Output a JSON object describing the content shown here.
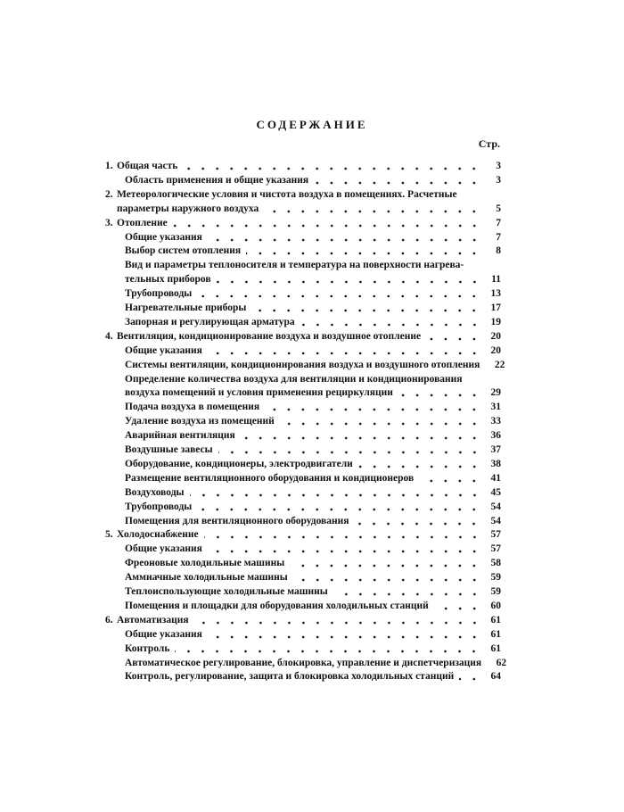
{
  "header": {
    "title": "СОДЕРЖАНИЕ",
    "page_label": "Стр."
  },
  "sections": [
    {
      "number": "1.",
      "lines": [
        "Общая часть"
      ],
      "page": 3,
      "items": [
        {
          "lines": [
            "Область применения и общие указания"
          ],
          "page": 3
        }
      ]
    },
    {
      "number": "2.",
      "lines": [
        "Метеорологические условия и чистота воздуха в помещениях. Расчетные",
        "параметры наружного воздуха"
      ],
      "page": 5,
      "items": []
    },
    {
      "number": "3.",
      "lines": [
        "Отопление"
      ],
      "page": 7,
      "items": [
        {
          "lines": [
            "Общие указания"
          ],
          "page": 7
        },
        {
          "lines": [
            "Выбор систем отопления"
          ],
          "page": 8
        },
        {
          "lines": [
            "Вид и параметры теплоносителя и температура на поверхности нагрева-",
            "тельных приборов"
          ],
          "page": 11
        },
        {
          "lines": [
            "Трубопроводы"
          ],
          "page": 13
        },
        {
          "lines": [
            "Нагревательные приборы"
          ],
          "page": 17
        },
        {
          "lines": [
            "Запорная и регулирующая арматура"
          ],
          "page": 19
        }
      ]
    },
    {
      "number": "4.",
      "lines": [
        "Вентиляция, кондиционирование воздуха и воздушное отопление"
      ],
      "page": 20,
      "items": [
        {
          "lines": [
            "Общие указания"
          ],
          "page": 20
        },
        {
          "lines": [
            "Системы вентиляции, кондиционирования воздуха и воздушного отопления"
          ],
          "page": 22
        },
        {
          "lines": [
            "Определение количества воздуха для вентиляции и кондиционирования",
            "воздуха помещений и условия применения рециркуляции"
          ],
          "page": 29
        },
        {
          "lines": [
            "Подача воздуха в помещения"
          ],
          "page": 31
        },
        {
          "lines": [
            "Удаление воздуха из помещений"
          ],
          "page": 33
        },
        {
          "lines": [
            "Аварийная вентиляция"
          ],
          "page": 36
        },
        {
          "lines": [
            "Воздушные завесы"
          ],
          "page": 37
        },
        {
          "lines": [
            "Оборудование, кондиционеры, электродвигатели"
          ],
          "page": 38
        },
        {
          "lines": [
            "Размещение вентиляционного оборудования и кондиционеров"
          ],
          "page": 41
        },
        {
          "lines": [
            "Воздуховоды"
          ],
          "page": 45
        },
        {
          "lines": [
            "Трубопроводы"
          ],
          "page": 54
        },
        {
          "lines": [
            "Помещения для вентиляционного оборудования"
          ],
          "page": 54
        }
      ]
    },
    {
      "number": "5.",
      "lines": [
        "Холодоснабжение"
      ],
      "page": 57,
      "items": [
        {
          "lines": [
            "Общие указания"
          ],
          "page": 57
        },
        {
          "lines": [
            "Фреоновые холодильные машины"
          ],
          "page": 58
        },
        {
          "lines": [
            "Аммиачные холодильные машины"
          ],
          "page": 59
        },
        {
          "lines": [
            "Теплоиспользующие холодильные машины"
          ],
          "page": 59
        },
        {
          "lines": [
            "Помещения и площадки для оборудования холодильных станций"
          ],
          "page": 60
        }
      ]
    },
    {
      "number": "6.",
      "lines": [
        "Автоматизация"
      ],
      "page": 61,
      "items": [
        {
          "lines": [
            "Общие указания"
          ],
          "page": 61
        },
        {
          "lines": [
            "Контроль"
          ],
          "page": 61
        },
        {
          "lines": [
            "Автоматическое регулирование, блокировка, управление и диспетчеризация"
          ],
          "page": 62
        },
        {
          "lines": [
            "Контроль, регулирование, защита и блокировка холодильных станций"
          ],
          "page": 64
        }
      ]
    }
  ]
}
